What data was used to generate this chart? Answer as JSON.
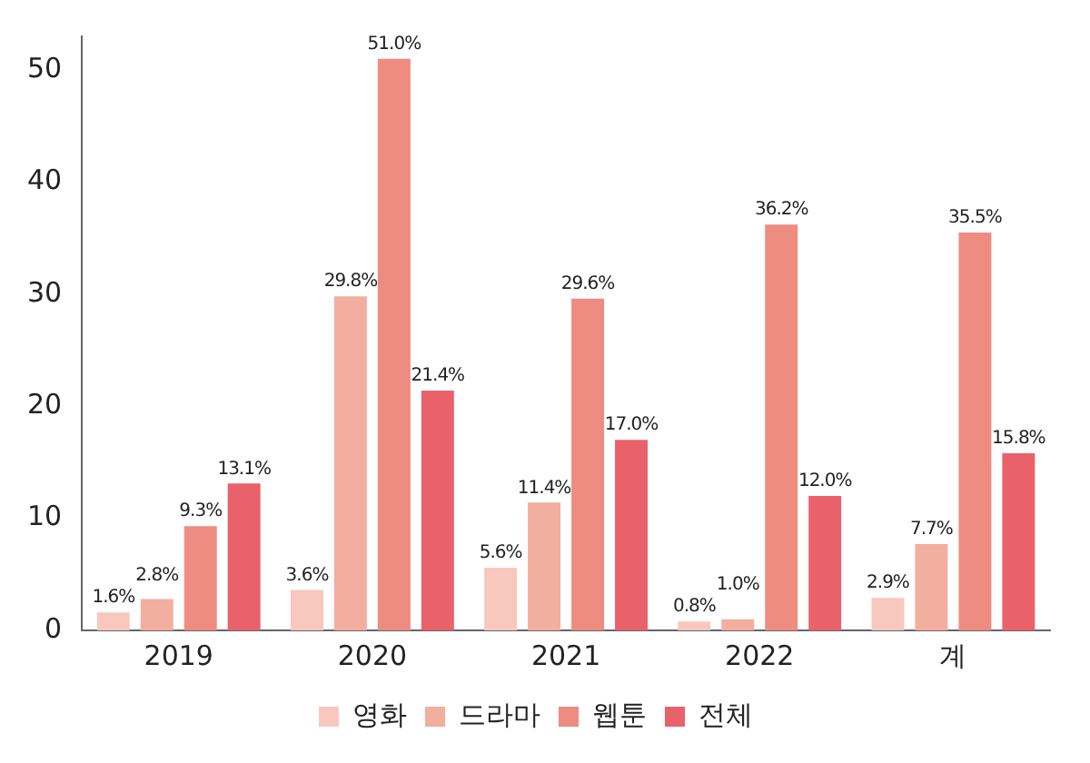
{
  "chart_data": {
    "type": "bar",
    "categories": [
      "2019",
      "2020",
      "2021",
      "2022",
      "계"
    ],
    "series": [
      {
        "name": "영화",
        "color": "#f8c8be",
        "values": [
          1.6,
          3.6,
          5.6,
          0.8,
          2.9
        ],
        "value_labels": [
          "1.6%",
          "3.6%",
          "5.6%",
          "0.8%",
          "2.9%"
        ]
      },
      {
        "name": "드라마",
        "color": "#f2ae9f",
        "values": [
          2.8,
          29.8,
          11.4,
          1.0,
          7.7
        ],
        "value_labels": [
          "2.8%",
          "29.8%",
          "11.4%",
          "1.0%",
          "7.7%"
        ]
      },
      {
        "name": "웹툰",
        "color": "#ee8c82",
        "values": [
          9.3,
          51.0,
          29.6,
          36.2,
          35.5
        ],
        "value_labels": [
          "9.3%",
          "51.0%",
          "29.6%",
          "36.2%",
          "35.5%"
        ]
      },
      {
        "name": "전체",
        "color": "#e9626b",
        "values": [
          13.1,
          21.4,
          17.0,
          12.0,
          15.8
        ],
        "value_labels": [
          "13.1%",
          "21.4%",
          "17.0%",
          "12.0%",
          "15.8%"
        ]
      }
    ],
    "ylim": [
      0,
      53
    ],
    "yticks": [
      0,
      10,
      20,
      30,
      40,
      50
    ],
    "grid": false,
    "legend": "bottom"
  }
}
